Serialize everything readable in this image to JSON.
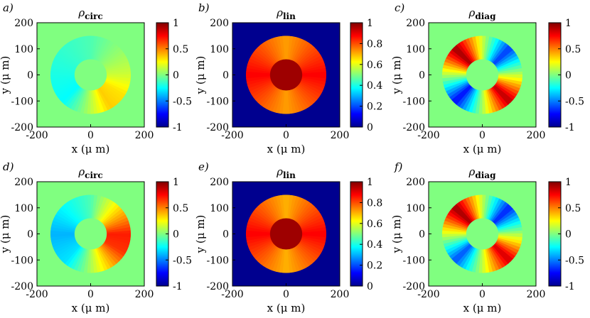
{
  "colors": {
    "background": "#8ccf4c",
    "outside_lin": "#1e3df0",
    "frame": "#000000",
    "colormap": [
      "#00008f",
      "#0000ff",
      "#0080ff",
      "#00ffff",
      "#80ff80",
      "#ffff00",
      "#ff8000",
      "#ff0000",
      "#800000"
    ]
  },
  "chart_data": [
    {
      "type": "heatmap",
      "label": "a)",
      "title": "ρ",
      "subscript": "circ",
      "xlabel": "x (μ m)",
      "ylabel": "y (μ m)",
      "xlim": [
        -200,
        200
      ],
      "ylim": [
        -200,
        200
      ],
      "xticks": [
        "-200",
        "0",
        "200"
      ],
      "yticks": [
        "200",
        "100",
        "0",
        "-100",
        "-200"
      ],
      "colorbar": {
        "range": [
          -1,
          1
        ],
        "ticks": [
          "1",
          "0.5",
          "0",
          "-0.5",
          "-1"
        ]
      },
      "ring": {
        "inner_radius": 60,
        "outer_radius": 150
      },
      "outside_value": 0.0,
      "hole_value": 0.0,
      "ring_samples": [
        {
          "angle_deg": 0,
          "value": 0.15
        },
        {
          "angle_deg": 90,
          "value": -0.1
        },
        {
          "angle_deg": 180,
          "value": -0.2
        },
        {
          "angle_deg": 225,
          "value": -0.25
        },
        {
          "angle_deg": 300,
          "value": 0.35
        },
        {
          "angle_deg": 330,
          "value": 0.3
        }
      ]
    },
    {
      "type": "heatmap",
      "label": "b)",
      "title": "ρ",
      "subscript": "lin",
      "xlabel": "x (μ m)",
      "ylabel": "y (μ m)",
      "xlim": [
        -200,
        200
      ],
      "ylim": [
        -200,
        200
      ],
      "xticks": [
        "-200",
        "0",
        "200"
      ],
      "yticks": [
        "200",
        "100",
        "0",
        "-100",
        "-200"
      ],
      "colorbar": {
        "range": [
          0,
          1
        ],
        "ticks": [
          "1",
          "0.8",
          "0.6",
          "0.4",
          "0.2",
          "0"
        ]
      },
      "ring": {
        "inner_radius": 60,
        "outer_radius": 150
      },
      "outside_value": 0.0,
      "hole_value": 0.97,
      "ring_samples": [
        {
          "angle_deg": 0,
          "value": 0.88
        },
        {
          "angle_deg": 90,
          "value": 0.72
        },
        {
          "angle_deg": 180,
          "value": 0.88
        },
        {
          "angle_deg": 270,
          "value": 0.72
        }
      ]
    },
    {
      "type": "heatmap",
      "label": "c)",
      "title": "ρ",
      "subscript": "diag",
      "xlabel": "x (μ m)",
      "ylabel": "y (μ m)",
      "xlim": [
        -200,
        200
      ],
      "ylim": [
        -200,
        200
      ],
      "xticks": [
        "-200",
        "0",
        "200"
      ],
      "yticks": [
        "200",
        "100",
        "0",
        "-100",
        "-200"
      ],
      "colorbar": {
        "range": [
          -1,
          1
        ],
        "ticks": [
          "1",
          "0.5",
          "0",
          "-0.5",
          "-1"
        ]
      },
      "ring": {
        "inner_radius": 60,
        "outer_radius": 150
      },
      "outside_value": 0.0,
      "hole_value": 0.0,
      "ring_samples": [
        {
          "angle_deg": 45,
          "value": -0.65
        },
        {
          "angle_deg": 135,
          "value": 0.95
        },
        {
          "angle_deg": 225,
          "value": -0.75
        },
        {
          "angle_deg": 315,
          "value": 0.9
        }
      ]
    },
    {
      "type": "heatmap",
      "label": "d)",
      "title": "ρ",
      "subscript": "circ",
      "xlabel": "x (μ m)",
      "ylabel": "y (μ m)",
      "xlim": [
        -200,
        200
      ],
      "ylim": [
        -200,
        200
      ],
      "xticks": [
        "-200",
        "0",
        "200"
      ],
      "yticks": [
        "200",
        "100",
        "0",
        "-100",
        "-200"
      ],
      "colorbar": {
        "range": [
          -1,
          1
        ],
        "ticks": [
          "1",
          "0.5",
          "0",
          "-0.5",
          "-1"
        ]
      },
      "ring": {
        "inner_radius": 60,
        "outer_radius": 150
      },
      "outside_value": 0.0,
      "hole_value": 0.0,
      "ring_samples": [
        {
          "angle_deg": 0,
          "value": 0.7
        },
        {
          "angle_deg": 90,
          "value": -0.1
        },
        {
          "angle_deg": 180,
          "value": -0.4
        },
        {
          "angle_deg": 230,
          "value": -0.3
        },
        {
          "angle_deg": 330,
          "value": 0.65
        }
      ]
    },
    {
      "type": "heatmap",
      "label": "e)",
      "title": "ρ",
      "subscript": "lin",
      "xlabel": "x (μ m)",
      "ylabel": "y (μ m)",
      "xlim": [
        -200,
        200
      ],
      "ylim": [
        -200,
        200
      ],
      "xticks": [
        "-200",
        "0",
        "200"
      ],
      "yticks": [
        "200",
        "100",
        "0",
        "-100",
        "-200"
      ],
      "colorbar": {
        "range": [
          0,
          1
        ],
        "ticks": [
          "1",
          "0.8",
          "0.6",
          "0.4",
          "0.2",
          "0"
        ]
      },
      "ring": {
        "inner_radius": 60,
        "outer_radius": 150
      },
      "outside_value": 0.0,
      "hole_value": 0.97,
      "ring_samples": [
        {
          "angle_deg": 0,
          "value": 0.88
        },
        {
          "angle_deg": 90,
          "value": 0.7
        },
        {
          "angle_deg": 180,
          "value": 0.88
        },
        {
          "angle_deg": 270,
          "value": 0.7
        }
      ]
    },
    {
      "type": "heatmap",
      "label": "f)",
      "title": "ρ",
      "subscript": "diag",
      "xlabel": "x (μ m)",
      "ylabel": "y (μ m)",
      "xlim": [
        -200,
        200
      ],
      "ylim": [
        -200,
        200
      ],
      "xticks": [
        "-200",
        "0",
        "200"
      ],
      "yticks": [
        "200",
        "100",
        "0",
        "-100",
        "-200"
      ],
      "colorbar": {
        "range": [
          -1,
          1
        ],
        "ticks": [
          "1",
          "0.5",
          "0",
          "-0.5",
          "-1"
        ]
      },
      "ring": {
        "inner_radius": 60,
        "outer_radius": 150
      },
      "outside_value": 0.0,
      "hole_value": 0.0,
      "ring_samples": [
        {
          "angle_deg": 45,
          "value": -0.7
        },
        {
          "angle_deg": 135,
          "value": 0.95
        },
        {
          "angle_deg": 225,
          "value": -0.6
        },
        {
          "angle_deg": 315,
          "value": 0.85
        }
      ]
    }
  ]
}
